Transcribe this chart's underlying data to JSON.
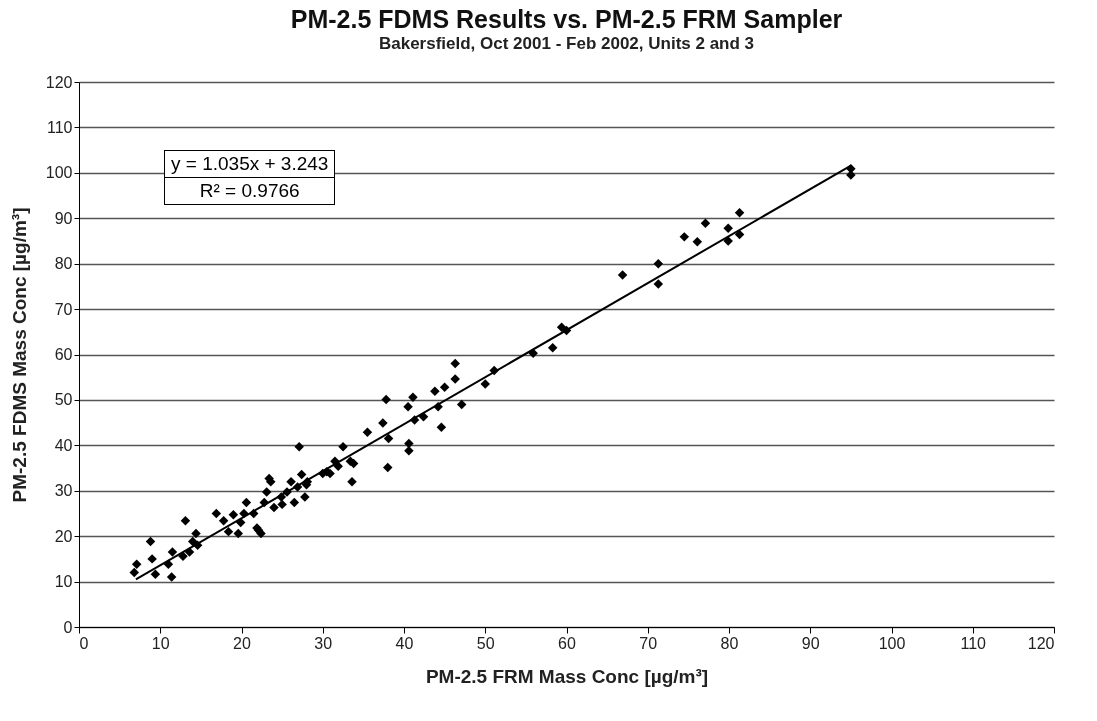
{
  "chart_data": {
    "type": "scatter",
    "title": "PM-2.5 FDMS Results vs. PM-2.5 FRM Sampler",
    "subtitle": "Bakersfield, Oct 2001 - Feb 2002, Units 2 and 3",
    "xlabel": "PM-2.5 FRM Mass Conc  [µg/m³]",
    "ylabel": "PM-2.5 FDMS Mass Conc  [µg/m³]",
    "xlim": [
      0,
      120
    ],
    "ylim": [
      0,
      120
    ],
    "xticks": [
      0,
      10,
      20,
      30,
      40,
      50,
      60,
      70,
      80,
      90,
      100,
      110,
      120
    ],
    "yticks": [
      0,
      10,
      20,
      30,
      40,
      50,
      60,
      70,
      80,
      90,
      100,
      110,
      120
    ],
    "grid": "y",
    "marker": "diamond",
    "annotations": [
      "y = 1.035x + 3.243",
      "R² = 0.9766"
    ],
    "series": [
      {
        "color": "#000000",
        "x": [
          6.8,
          7.1,
          8.8,
          9,
          9.4,
          11,
          11.4,
          11.5,
          12.8,
          13.1,
          13.6,
          14,
          14.4,
          14.6,
          16.9,
          17.8,
          18.4,
          19,
          19.6,
          19.9,
          20.3,
          20.6,
          21.5,
          21.9,
          22.1,
          22.4,
          22.8,
          23.1,
          23.4,
          23.6,
          24,
          24.9,
          25,
          25.6,
          26.1,
          26.5,
          26.9,
          27.1,
          27.4,
          27.8,
          28,
          28.1,
          30,
          30.5,
          30.9,
          31.5,
          31.9,
          32.5,
          33.4,
          33.6,
          33.8,
          35.5,
          37.4,
          37.8,
          38,
          38.1,
          40.5,
          40.6,
          40.6,
          41.1,
          41.3,
          42.4,
          43.8,
          44.2,
          44.6,
          45,
          46.3,
          46.3,
          47.1,
          50,
          51.1,
          55.9,
          58.3,
          59.4,
          60,
          66.9,
          71.3,
          71.3,
          74.5,
          76.1,
          77.1,
          79.9,
          79.9,
          81.3,
          81.3,
          95,
          95
        ],
        "values": [
          12,
          13.8,
          18.8,
          15,
          11.6,
          13.8,
          11,
          16.5,
          15.6,
          23.4,
          16.5,
          18.8,
          20.6,
          18,
          25,
          23.4,
          21,
          24.7,
          20.6,
          23,
          25,
          27.4,
          25,
          21.8,
          21.3,
          20.6,
          27.4,
          29.7,
          32.7,
          32,
          26.3,
          28.6,
          27,
          29.7,
          32,
          27.4,
          30.8,
          39.7,
          33.6,
          28.6,
          31.3,
          32,
          33.8,
          34.2,
          33.8,
          36.5,
          35.4,
          39.7,
          36.5,
          32,
          36,
          42.9,
          44.9,
          50.1,
          35.1,
          41.5,
          48.5,
          40.4,
          38.8,
          50.6,
          45.6,
          46.3,
          51.9,
          48.5,
          44,
          52.8,
          58,
          54.6,
          49,
          53.5,
          56.5,
          60.3,
          61.5,
          66,
          65.3,
          77.5,
          80,
          75.5,
          85.9,
          84.8,
          88.9,
          87.8,
          85,
          91.2,
          86.4,
          100.9,
          99.5
        ]
      },
      {
        "type": "line",
        "marker": "none",
        "color": "#000000",
        "x": [
          7,
          95
        ],
        "values": [
          10.5,
          101.6
        ]
      }
    ]
  }
}
